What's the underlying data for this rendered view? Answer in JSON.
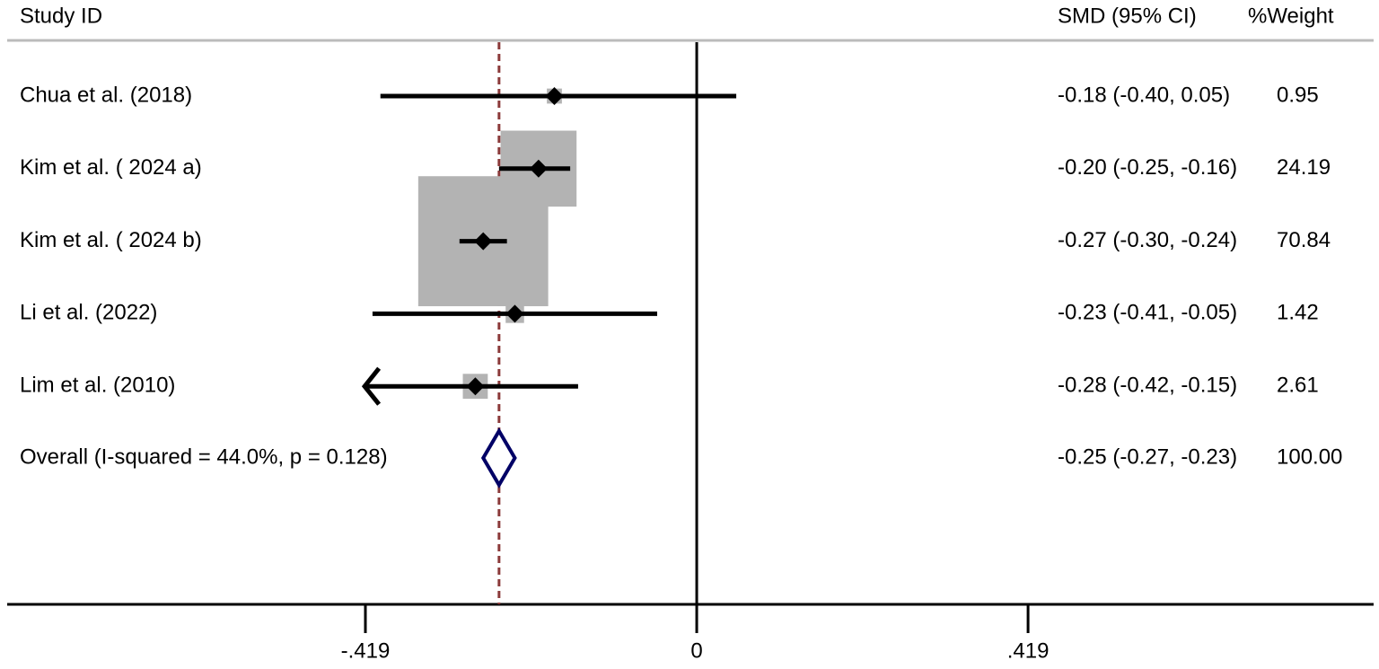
{
  "chart_data": {
    "type": "forest",
    "columns": {
      "study": "Study  ID",
      "estimate": "SMD (95% CI)",
      "weight": "%Weight"
    },
    "categories": [
      "Chua et al. (2018)",
      "Kim et al. ( 2024 a)",
      "Kim et al. ( 2024 b)",
      "Li et al. (2022)",
      "Lim et al. (2010)"
    ],
    "values": [
      -0.18,
      -0.2,
      -0.27,
      -0.23,
      -0.28
    ],
    "lower": [
      -0.4,
      -0.25,
      -0.3,
      -0.41,
      -0.42
    ],
    "upper": [
      0.05,
      -0.16,
      -0.24,
      -0.05,
      -0.15
    ],
    "weights": [
      0.95,
      24.19,
      70.84,
      1.42,
      2.61
    ],
    "value_labels": [
      "-0.18 (-0.40, 0.05)",
      "-0.20 (-0.25, -0.16)",
      "-0.27 (-0.30, -0.24)",
      "-0.23 (-0.41, -0.05)",
      "-0.28 (-0.42, -0.15)"
    ],
    "overall": {
      "label": "Overall  (I-squared = 44.0%, p = 0.128)",
      "value": -0.25,
      "lower": -0.27,
      "upper": -0.23,
      "value_label": "-0.25 (-0.27, -0.23)",
      "weight": 100,
      "weight_label": "100.00"
    },
    "reference_line": 0,
    "xlim": [
      -0.872,
      0.856
    ],
    "xticks": [
      {
        "value": -0.419,
        "label": "-.419"
      },
      0,
      {
        "value": 0.419,
        "label": ".419"
      }
    ],
    "box_color": "#b3b3b3",
    "ci_color": "#000000",
    "overall_color": "#000066",
    "overall_line_color": "#8b3a3a"
  }
}
